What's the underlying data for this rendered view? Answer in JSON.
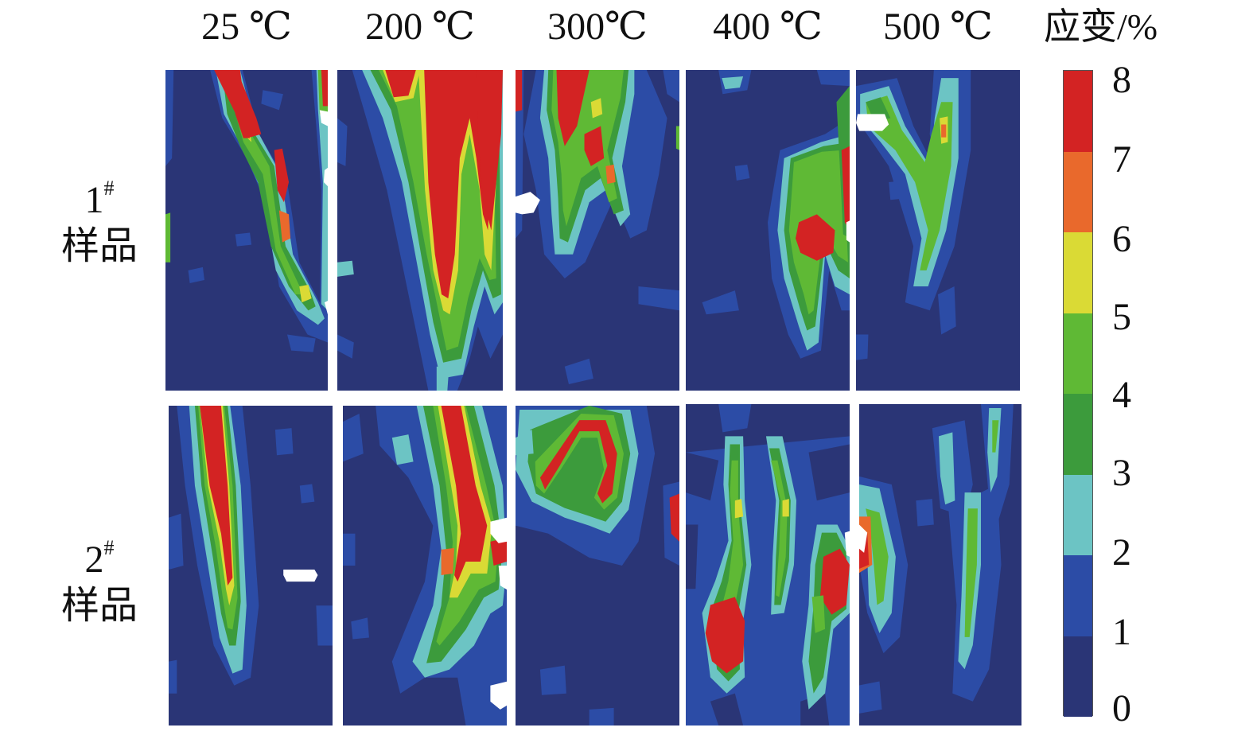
{
  "columns": [
    "25 ℃",
    "200 ℃",
    "300℃",
    "400 ℃",
    "500 ℃"
  ],
  "rows": [
    {
      "num": "1",
      "sup": "#",
      "name": "样品"
    },
    {
      "num": "2",
      "sup": "#",
      "name": "样品"
    }
  ],
  "colorbar": {
    "title": "应变/%",
    "ticks": [
      "8",
      "7",
      "6",
      "5",
      "4",
      "3",
      "2",
      "1",
      "0"
    ],
    "colors": [
      "#d32323",
      "#e9692c",
      "#dada35",
      "#5fb935",
      "#3c9b3c",
      "#6cc4c4",
      "#2c4ca6",
      "#2a3576"
    ]
  },
  "panels": [
    {
      "row": 0,
      "col": 0,
      "icon": "strain-contour-map"
    },
    {
      "row": 0,
      "col": 1,
      "icon": "strain-contour-map"
    },
    {
      "row": 0,
      "col": 2,
      "icon": "strain-contour-map"
    },
    {
      "row": 0,
      "col": 3,
      "icon": "strain-contour-map"
    },
    {
      "row": 0,
      "col": 4,
      "icon": "strain-contour-map"
    },
    {
      "row": 1,
      "col": 0,
      "icon": "strain-contour-map"
    },
    {
      "row": 1,
      "col": 1,
      "icon": "strain-contour-map"
    },
    {
      "row": 1,
      "col": 2,
      "icon": "strain-contour-map"
    },
    {
      "row": 1,
      "col": 3,
      "icon": "strain-contour-map"
    },
    {
      "row": 1,
      "col": 4,
      "icon": "strain-contour-map"
    }
  ]
}
